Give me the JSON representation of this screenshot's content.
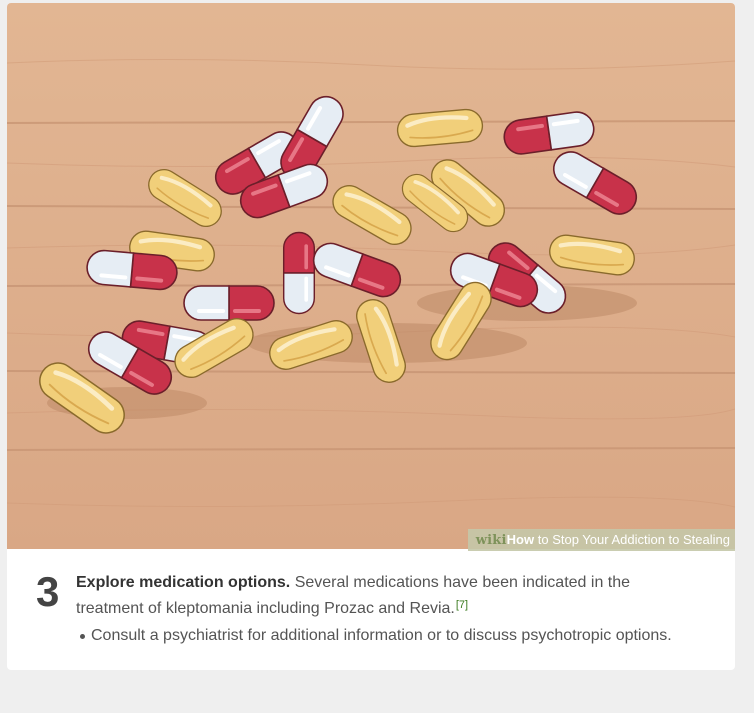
{
  "step": {
    "number": "3",
    "title": "Explore medication options.",
    "body": " Several medications have been indicated in the treatment of kleptomania including Prozac and Revia.",
    "reference": "[7]",
    "bullets": [
      "Consult a psychiatrist for additional information or to discuss psychotropic options."
    ]
  },
  "image": {
    "subject": "pills-illustration",
    "watermark": {
      "brand": "wiki",
      "how": "How",
      "rest": " to Stop Your Addiction to Stealing"
    }
  },
  "colors": {
    "page_background": "#efefef",
    "card_background": "#ffffff",
    "wood": "#dfb290",
    "wood_grain": "#c99676",
    "capsule_red": "#c8324a",
    "capsule_white": "#e6edf4",
    "tablet_yellow": "#f1cf7a",
    "text": "#545454",
    "reference_link": "#3a7a1e"
  }
}
